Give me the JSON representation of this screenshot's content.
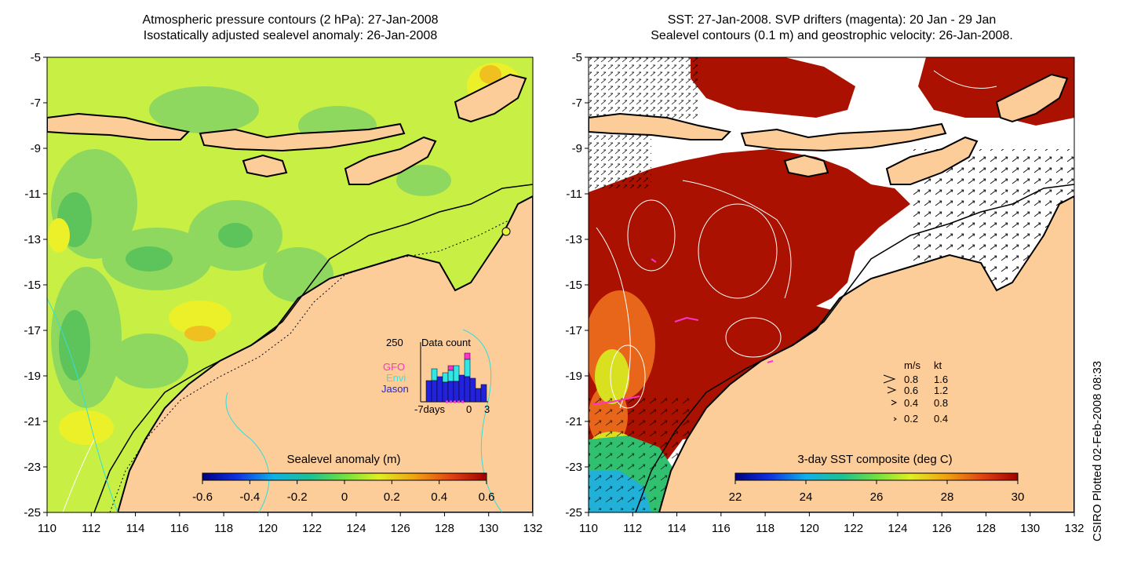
{
  "left_panel": {
    "title_line1": "Atmospheric pressure contours (2 hPa): 27-Jan-2008",
    "title_line2": "Isostatically adjusted sealevel anomaly: 26-Jan-2008",
    "colorbar_title": "Sealevel anomaly (m)",
    "colorbar_ticks": [
      "-0.6",
      "-0.4",
      "-0.2",
      "0",
      "0.2",
      "0.4",
      "0.6"
    ],
    "inset": {
      "y_max_label": "250",
      "title": "Data count",
      "legend": [
        {
          "label": "GFO",
          "color": "#ff33cc"
        },
        {
          "label": "Envi",
          "color": "#33e6e6"
        },
        {
          "label": "Jason",
          "color": "#2222dd"
        }
      ],
      "x_labels": [
        "-7days",
        "0",
        "3"
      ]
    }
  },
  "right_panel": {
    "title_line1": "SST: 27-Jan-2008. SVP drifters (magenta): 20 Jan - 29 Jan",
    "title_line2": "Sealevel contours (0.1 m) and geostrophic velocity: 26-Jan-2008.",
    "colorbar_title": "3-day SST composite (deg C)",
    "colorbar_ticks": [
      "22",
      "24",
      "26",
      "28",
      "30"
    ],
    "velocity_legend": {
      "header_ms": "m/s",
      "header_kt": "kt",
      "rows": [
        {
          "ms": "0.8",
          "kt": "1.6"
        },
        {
          "ms": "0.6",
          "kt": "1.2"
        },
        {
          "ms": "0.4",
          "kt": "0.8"
        },
        {
          "ms": "0.2",
          "kt": "0.4"
        }
      ]
    }
  },
  "axes": {
    "lon_labels": [
      "110",
      "112",
      "114",
      "116",
      "118",
      "120",
      "122",
      "124",
      "126",
      "128",
      "130",
      "132"
    ],
    "lat_labels": [
      "-5",
      "-7",
      "-9",
      "-11",
      "-13",
      "-15",
      "-17",
      "-19",
      "-21",
      "-23",
      "-25"
    ]
  },
  "credit": "CSIRO Plotted 02-Feb-2008 08:33",
  "colors": {
    "land": "#fccc99",
    "sla_background": "#c8f044",
    "sst_warm": "#aa1100",
    "cyan_contour": "#33dddd"
  }
}
